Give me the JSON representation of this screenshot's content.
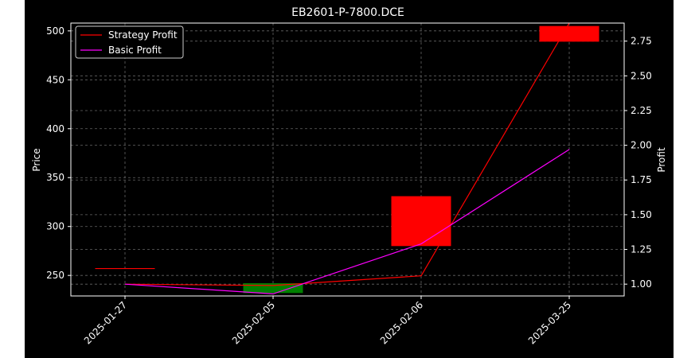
{
  "chart_data": {
    "type": "candlestick",
    "title": "EB2601-P-7800.DCE",
    "xlabel": "",
    "ylabel": "Price",
    "y2label": "Profit",
    "categories": [
      "2025-01-27",
      "2025-02-05",
      "2025-02-06",
      "2025-03-25"
    ],
    "ylim": [
      229,
      508
    ],
    "y2lim": [
      0.915,
      2.88
    ],
    "yticks": [
      250,
      300,
      350,
      400,
      450,
      500
    ],
    "y2ticks": [
      1.0,
      1.25,
      1.5,
      1.75,
      2.0,
      2.25,
      2.5,
      2.75
    ],
    "y2tick_labels": [
      "1.00",
      "1.25",
      "1.50",
      "1.75",
      "2.00",
      "2.25",
      "2.50",
      "2.75"
    ],
    "grid": true,
    "legend_position": "top-left",
    "candles": [
      {
        "x": "2025-01-27",
        "open": 257,
        "close": 257,
        "direction": "flat",
        "color": "#ff0000"
      },
      {
        "x": "2025-02-05",
        "open": 242,
        "close": 232,
        "direction": "down",
        "color": "#008000"
      },
      {
        "x": "2025-02-06",
        "open": 280,
        "close": 331,
        "direction": "up",
        "color": "#ff0000"
      },
      {
        "x": "2025-03-25",
        "open": 489,
        "close": 505,
        "direction": "up",
        "color": "#ff0000"
      }
    ],
    "series": [
      {
        "name": "Strategy Profit",
        "color": "#ff0000",
        "axis": "right",
        "values": [
          1.0,
          0.99,
          1.06,
          2.88
        ]
      },
      {
        "name": "Basic Profit",
        "color": "#ff00ff",
        "axis": "right",
        "values": [
          1.0,
          0.93,
          1.29,
          1.97
        ]
      }
    ]
  }
}
